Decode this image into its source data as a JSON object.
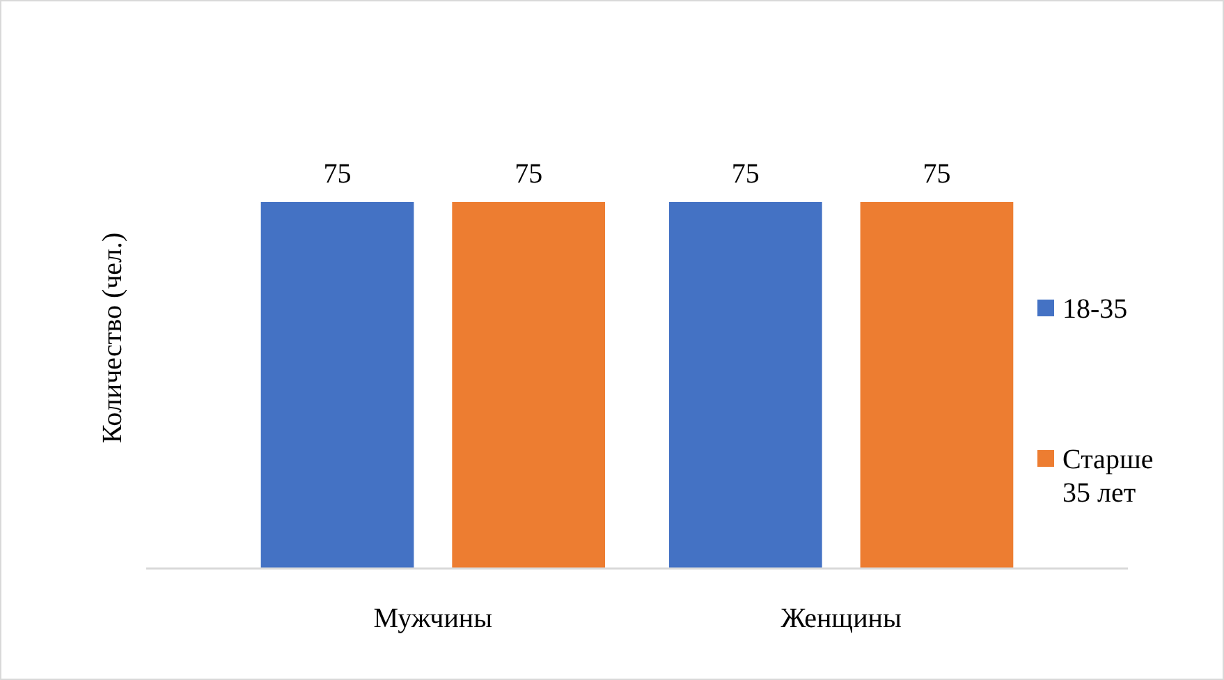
{
  "chart_data": {
    "type": "bar",
    "ylabel": "Количество (чел.)",
    "categories": [
      "Мужчины",
      "Женщины"
    ],
    "series": [
      {
        "name": "18-35",
        "color": "#4472c4",
        "values": [
          75,
          75
        ]
      },
      {
        "name": "Старше 35 лет",
        "color": "#ed7d31",
        "values": [
          75,
          75
        ]
      }
    ],
    "data_labels": true,
    "legend": "right",
    "tick_labels": "x"
  }
}
